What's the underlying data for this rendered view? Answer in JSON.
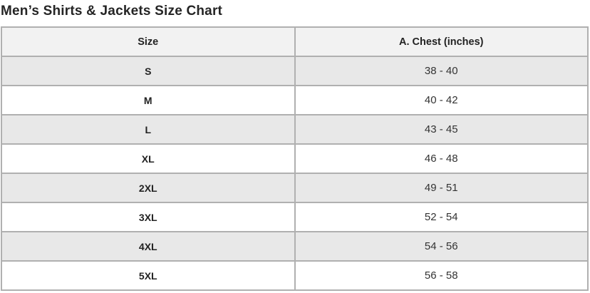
{
  "chart_data": {
    "type": "table",
    "title": "Men’s Shirts & Jackets Size Chart",
    "columns": [
      "Size",
      "A. Chest (inches)"
    ],
    "rows": [
      {
        "size": "S",
        "chest": "38 - 40"
      },
      {
        "size": "M",
        "chest": "40 - 42"
      },
      {
        "size": "L",
        "chest": "43 - 45"
      },
      {
        "size": "XL",
        "chest": "46 - 48"
      },
      {
        "size": "2XL",
        "chest": "49 - 51"
      },
      {
        "size": "3XL",
        "chest": "52 - 54"
      },
      {
        "size": "4XL",
        "chest": "54 - 56"
      },
      {
        "size": "5XL",
        "chest": "56 - 58"
      }
    ],
    "layout": {
      "legend": "none",
      "grid": "full-borders",
      "row_striping": "odd-rows-gray"
    }
  },
  "colors": {
    "title_text": "#252525",
    "header_bg": "#f2f2f2",
    "row_alt_bg": "#e8e8e8",
    "row_bg": "#ffffff",
    "border": "#b0b0b0",
    "size_text": "#222222",
    "chest_text": "#333333"
  }
}
